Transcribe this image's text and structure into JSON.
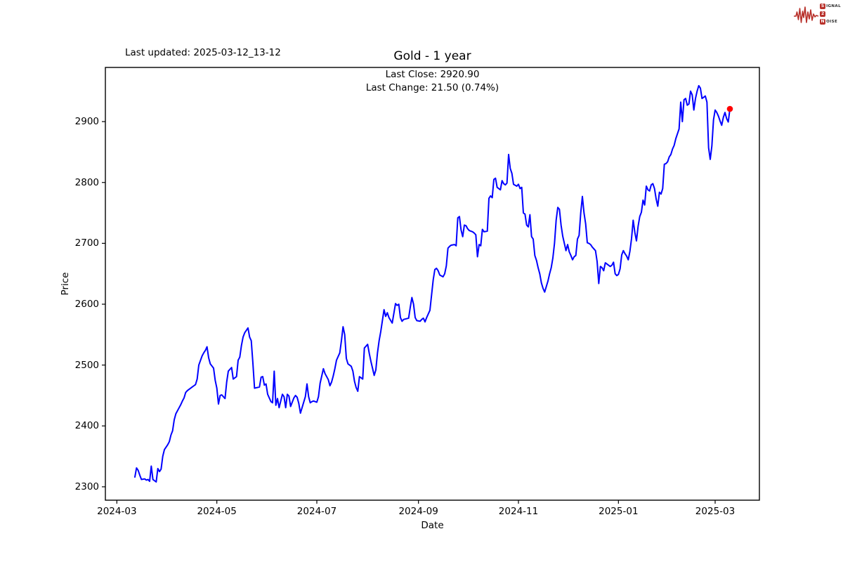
{
  "header": {
    "last_updated": "Last updated: 2025-03-12_13-12"
  },
  "logo": {
    "rows": [
      {
        "badge": "S",
        "rest": "IGNAL"
      },
      {
        "badge": "2",
        "rest": ""
      },
      {
        "badge": "N",
        "rest": "OISE"
      }
    ]
  },
  "chart_data": {
    "type": "line",
    "title": "Gold - 1 year",
    "annotation_lines": [
      "Last Close: 2920.90",
      "Last Change: 21.50 (0.74%)"
    ],
    "xlabel": "Date",
    "ylabel": "Price",
    "grid": false,
    "legend": "none",
    "x_ticks": [
      "2024-03",
      "2024-05",
      "2024-07",
      "2024-09",
      "2024-11",
      "2025-01",
      "2025-03"
    ],
    "x_tick_dates": [
      "2024-03-01",
      "2024-05-01",
      "2024-07-01",
      "2024-09-01",
      "2024-11-01",
      "2025-01-01",
      "2025-03-01"
    ],
    "y_ticks": [
      2300,
      2400,
      2500,
      2600,
      2700,
      2800,
      2900
    ],
    "xlim": [
      "2024-02-23",
      "2025-03-28"
    ],
    "ylim": [
      2278,
      2989
    ],
    "colors": {
      "line": "#0000ff",
      "marker": "#ff0000",
      "frame": "#000000",
      "text": "#000000",
      "logo_red": "#b8312b"
    },
    "last_close": 2920.9,
    "last_change": 21.5,
    "last_change_pct": 0.74,
    "series": [
      [
        "2024-03-12",
        2316
      ],
      [
        "2024-03-13",
        2331
      ],
      [
        "2024-03-14",
        2327
      ],
      [
        "2024-03-15",
        2319
      ],
      [
        "2024-03-16",
        2312
      ],
      [
        "2024-03-18",
        2313
      ],
      [
        "2024-03-19",
        2311
      ],
      [
        "2024-03-20",
        2312
      ],
      [
        "2024-03-21",
        2309
      ],
      [
        "2024-03-22",
        2334
      ],
      [
        "2024-03-23",
        2312
      ],
      [
        "2024-03-25",
        2308
      ],
      [
        "2024-03-26",
        2330
      ],
      [
        "2024-03-27",
        2325
      ],
      [
        "2024-03-28",
        2329
      ],
      [
        "2024-03-29",
        2350
      ],
      [
        "2024-03-30",
        2361
      ],
      [
        "2024-04-01",
        2369
      ],
      [
        "2024-04-02",
        2374
      ],
      [
        "2024-04-03",
        2385
      ],
      [
        "2024-04-04",
        2392
      ],
      [
        "2024-04-05",
        2410
      ],
      [
        "2024-04-06",
        2420
      ],
      [
        "2024-04-08",
        2430
      ],
      [
        "2024-04-09",
        2435
      ],
      [
        "2024-04-10",
        2441
      ],
      [
        "2024-04-11",
        2446
      ],
      [
        "2024-04-12",
        2455
      ],
      [
        "2024-04-13",
        2458
      ],
      [
        "2024-04-15",
        2462
      ],
      [
        "2024-04-16",
        2464
      ],
      [
        "2024-04-17",
        2466
      ],
      [
        "2024-04-18",
        2468
      ],
      [
        "2024-04-19",
        2477
      ],
      [
        "2024-04-20",
        2500
      ],
      [
        "2024-04-22",
        2515
      ],
      [
        "2024-04-23",
        2520
      ],
      [
        "2024-04-24",
        2524
      ],
      [
        "2024-04-25",
        2530
      ],
      [
        "2024-04-26",
        2512
      ],
      [
        "2024-04-27",
        2502
      ],
      [
        "2024-04-29",
        2495
      ],
      [
        "2024-04-30",
        2475
      ],
      [
        "2024-05-01",
        2462
      ],
      [
        "2024-05-02",
        2436
      ],
      [
        "2024-05-03",
        2450
      ],
      [
        "2024-05-04",
        2451
      ],
      [
        "2024-05-06",
        2445
      ],
      [
        "2024-05-07",
        2472
      ],
      [
        "2024-05-08",
        2490
      ],
      [
        "2024-05-10",
        2496
      ],
      [
        "2024-05-11",
        2477
      ],
      [
        "2024-05-13",
        2481
      ],
      [
        "2024-05-14",
        2508
      ],
      [
        "2024-05-15",
        2513
      ],
      [
        "2024-05-16",
        2532
      ],
      [
        "2024-05-17",
        2546
      ],
      [
        "2024-05-18",
        2553
      ],
      [
        "2024-05-20",
        2561
      ],
      [
        "2024-05-21",
        2546
      ],
      [
        "2024-05-22",
        2540
      ],
      [
        "2024-05-23",
        2503
      ],
      [
        "2024-05-24",
        2462
      ],
      [
        "2024-05-27",
        2464
      ],
      [
        "2024-05-28",
        2480
      ],
      [
        "2024-05-29",
        2481
      ],
      [
        "2024-05-30",
        2467
      ],
      [
        "2024-05-31",
        2469
      ],
      [
        "2024-06-01",
        2452
      ],
      [
        "2024-06-03",
        2440
      ],
      [
        "2024-06-04",
        2438
      ],
      [
        "2024-06-05",
        2490
      ],
      [
        "2024-06-06",
        2434
      ],
      [
        "2024-06-07",
        2445
      ],
      [
        "2024-06-08",
        2430
      ],
      [
        "2024-06-10",
        2452
      ],
      [
        "2024-06-11",
        2448
      ],
      [
        "2024-06-12",
        2430
      ],
      [
        "2024-06-13",
        2452
      ],
      [
        "2024-06-14",
        2449
      ],
      [
        "2024-06-15",
        2432
      ],
      [
        "2024-06-17",
        2446
      ],
      [
        "2024-06-18",
        2450
      ],
      [
        "2024-06-19",
        2447
      ],
      [
        "2024-06-20",
        2437
      ],
      [
        "2024-06-21",
        2421
      ],
      [
        "2024-06-22",
        2430
      ],
      [
        "2024-06-24",
        2448
      ],
      [
        "2024-06-25",
        2469
      ],
      [
        "2024-06-26",
        2448
      ],
      [
        "2024-06-27",
        2438
      ],
      [
        "2024-06-28",
        2440
      ],
      [
        "2024-06-29",
        2441
      ],
      [
        "2024-07-01",
        2439
      ],
      [
        "2024-07-02",
        2448
      ],
      [
        "2024-07-03",
        2470
      ],
      [
        "2024-07-05",
        2494
      ],
      [
        "2024-07-06",
        2486
      ],
      [
        "2024-07-08",
        2476
      ],
      [
        "2024-07-09",
        2466
      ],
      [
        "2024-07-10",
        2472
      ],
      [
        "2024-07-11",
        2482
      ],
      [
        "2024-07-12",
        2494
      ],
      [
        "2024-07-13",
        2508
      ],
      [
        "2024-07-15",
        2520
      ],
      [
        "2024-07-16",
        2540
      ],
      [
        "2024-07-17",
        2563
      ],
      [
        "2024-07-18",
        2550
      ],
      [
        "2024-07-19",
        2511
      ],
      [
        "2024-07-20",
        2502
      ],
      [
        "2024-07-22",
        2498
      ],
      [
        "2024-07-23",
        2490
      ],
      [
        "2024-07-24",
        2473
      ],
      [
        "2024-07-25",
        2463
      ],
      [
        "2024-07-26",
        2457
      ],
      [
        "2024-07-27",
        2481
      ],
      [
        "2024-07-29",
        2477
      ],
      [
        "2024-07-30",
        2528
      ],
      [
        "2024-07-31",
        2531
      ],
      [
        "2024-08-01",
        2534
      ],
      [
        "2024-08-02",
        2519
      ],
      [
        "2024-08-03",
        2506
      ],
      [
        "2024-08-05",
        2483
      ],
      [
        "2024-08-06",
        2492
      ],
      [
        "2024-08-07",
        2520
      ],
      [
        "2024-08-08",
        2540
      ],
      [
        "2024-08-09",
        2555
      ],
      [
        "2024-08-11",
        2591
      ],
      [
        "2024-08-12",
        2580
      ],
      [
        "2024-08-13",
        2586
      ],
      [
        "2024-08-14",
        2578
      ],
      [
        "2024-08-16",
        2569
      ],
      [
        "2024-08-18",
        2601
      ],
      [
        "2024-08-19",
        2598
      ],
      [
        "2024-08-20",
        2600
      ],
      [
        "2024-08-21",
        2578
      ],
      [
        "2024-08-22",
        2572
      ],
      [
        "2024-08-23",
        2575
      ],
      [
        "2024-08-26",
        2577
      ],
      [
        "2024-08-27",
        2595
      ],
      [
        "2024-08-28",
        2611
      ],
      [
        "2024-08-29",
        2600
      ],
      [
        "2024-08-30",
        2578
      ],
      [
        "2024-08-31",
        2573
      ],
      [
        "2024-09-02",
        2572
      ],
      [
        "2024-09-03",
        2575
      ],
      [
        "2024-09-04",
        2577
      ],
      [
        "2024-09-05",
        2571
      ],
      [
        "2024-09-06",
        2578
      ],
      [
        "2024-09-08",
        2590
      ],
      [
        "2024-09-09",
        2615
      ],
      [
        "2024-09-10",
        2640
      ],
      [
        "2024-09-11",
        2657
      ],
      [
        "2024-09-12",
        2659
      ],
      [
        "2024-09-13",
        2655
      ],
      [
        "2024-09-14",
        2648
      ],
      [
        "2024-09-16",
        2645
      ],
      [
        "2024-09-17",
        2650
      ],
      [
        "2024-09-18",
        2663
      ],
      [
        "2024-09-19",
        2692
      ],
      [
        "2024-09-20",
        2695
      ],
      [
        "2024-09-21",
        2697
      ],
      [
        "2024-09-23",
        2698
      ],
      [
        "2024-09-24",
        2696
      ],
      [
        "2024-09-25",
        2742
      ],
      [
        "2024-09-26",
        2744
      ],
      [
        "2024-09-27",
        2722
      ],
      [
        "2024-09-28",
        2711
      ],
      [
        "2024-09-29",
        2730
      ],
      [
        "2024-09-30",
        2729
      ],
      [
        "2024-10-01",
        2724
      ],
      [
        "2024-10-02",
        2721
      ],
      [
        "2024-10-04",
        2719
      ],
      [
        "2024-10-05",
        2717
      ],
      [
        "2024-10-06",
        2714
      ],
      [
        "2024-10-07",
        2678
      ],
      [
        "2024-10-08",
        2698
      ],
      [
        "2024-10-09",
        2696
      ],
      [
        "2024-10-10",
        2723
      ],
      [
        "2024-10-11",
        2719
      ],
      [
        "2024-10-13",
        2720
      ],
      [
        "2024-10-14",
        2774
      ],
      [
        "2024-10-15",
        2778
      ],
      [
        "2024-10-16",
        2775
      ],
      [
        "2024-10-17",
        2805
      ],
      [
        "2024-10-18",
        2807
      ],
      [
        "2024-10-19",
        2792
      ],
      [
        "2024-10-21",
        2788
      ],
      [
        "2024-10-22",
        2803
      ],
      [
        "2024-10-23",
        2798
      ],
      [
        "2024-10-24",
        2796
      ],
      [
        "2024-10-25",
        2799
      ],
      [
        "2024-10-26",
        2846
      ],
      [
        "2024-10-27",
        2823
      ],
      [
        "2024-10-28",
        2815
      ],
      [
        "2024-10-29",
        2797
      ],
      [
        "2024-10-31",
        2794
      ],
      [
        "2024-11-01",
        2797
      ],
      [
        "2024-11-02",
        2790
      ],
      [
        "2024-11-03",
        2792
      ],
      [
        "2024-11-04",
        2750
      ],
      [
        "2024-11-05",
        2748
      ],
      [
        "2024-11-06",
        2730
      ],
      [
        "2024-11-07",
        2727
      ],
      [
        "2024-11-08",
        2747
      ],
      [
        "2024-11-09",
        2711
      ],
      [
        "2024-11-10",
        2707
      ],
      [
        "2024-11-11",
        2680
      ],
      [
        "2024-11-12",
        2672
      ],
      [
        "2024-11-13",
        2660
      ],
      [
        "2024-11-14",
        2650
      ],
      [
        "2024-11-15",
        2635
      ],
      [
        "2024-11-16",
        2626
      ],
      [
        "2024-11-17",
        2620
      ],
      [
        "2024-11-18",
        2629
      ],
      [
        "2024-11-19",
        2638
      ],
      [
        "2024-11-20",
        2650
      ],
      [
        "2024-11-21",
        2660
      ],
      [
        "2024-11-22",
        2676
      ],
      [
        "2024-11-23",
        2700
      ],
      [
        "2024-11-24",
        2738
      ],
      [
        "2024-11-25",
        2759
      ],
      [
        "2024-11-26",
        2756
      ],
      [
        "2024-11-27",
        2730
      ],
      [
        "2024-11-28",
        2712
      ],
      [
        "2024-11-29",
        2700
      ],
      [
        "2024-11-30",
        2688
      ],
      [
        "2024-12-01",
        2698
      ],
      [
        "2024-12-02",
        2686
      ],
      [
        "2024-12-03",
        2680
      ],
      [
        "2024-12-04",
        2673
      ],
      [
        "2024-12-05",
        2678
      ],
      [
        "2024-12-06",
        2680
      ],
      [
        "2024-12-07",
        2707
      ],
      [
        "2024-12-08",
        2713
      ],
      [
        "2024-12-09",
        2750
      ],
      [
        "2024-12-10",
        2777
      ],
      [
        "2024-12-11",
        2750
      ],
      [
        "2024-12-12",
        2732
      ],
      [
        "2024-12-13",
        2701
      ],
      [
        "2024-12-14",
        2700
      ],
      [
        "2024-12-15",
        2698
      ],
      [
        "2024-12-16",
        2694
      ],
      [
        "2024-12-18",
        2688
      ],
      [
        "2024-12-19",
        2670
      ],
      [
        "2024-12-20",
        2634
      ],
      [
        "2024-12-21",
        2662
      ],
      [
        "2024-12-22",
        2660
      ],
      [
        "2024-12-23",
        2655
      ],
      [
        "2024-12-24",
        2668
      ],
      [
        "2024-12-25",
        2666
      ],
      [
        "2024-12-27",
        2662
      ],
      [
        "2024-12-28",
        2664
      ],
      [
        "2024-12-29",
        2669
      ],
      [
        "2024-12-30",
        2650
      ],
      [
        "2024-12-31",
        2647
      ],
      [
        "2025-01-01",
        2649
      ],
      [
        "2025-01-02",
        2658
      ],
      [
        "2025-01-03",
        2681
      ],
      [
        "2025-01-04",
        2688
      ],
      [
        "2025-01-05",
        2683
      ],
      [
        "2025-01-06",
        2679
      ],
      [
        "2025-01-07",
        2673
      ],
      [
        "2025-01-08",
        2687
      ],
      [
        "2025-01-09",
        2708
      ],
      [
        "2025-01-10",
        2738
      ],
      [
        "2025-01-11",
        2718
      ],
      [
        "2025-01-12",
        2704
      ],
      [
        "2025-01-13",
        2728
      ],
      [
        "2025-01-14",
        2744
      ],
      [
        "2025-01-15",
        2751
      ],
      [
        "2025-01-16",
        2771
      ],
      [
        "2025-01-17",
        2763
      ],
      [
        "2025-01-18",
        2794
      ],
      [
        "2025-01-19",
        2788
      ],
      [
        "2025-01-20",
        2786
      ],
      [
        "2025-01-21",
        2796
      ],
      [
        "2025-01-22",
        2798
      ],
      [
        "2025-01-23",
        2790
      ],
      [
        "2025-01-24",
        2773
      ],
      [
        "2025-01-25",
        2761
      ],
      [
        "2025-01-26",
        2784
      ],
      [
        "2025-01-27",
        2781
      ],
      [
        "2025-01-28",
        2790
      ],
      [
        "2025-01-29",
        2830
      ],
      [
        "2025-01-30",
        2831
      ],
      [
        "2025-01-31",
        2834
      ],
      [
        "2025-02-01",
        2842
      ],
      [
        "2025-02-02",
        2846
      ],
      [
        "2025-02-03",
        2855
      ],
      [
        "2025-02-04",
        2861
      ],
      [
        "2025-02-05",
        2872
      ],
      [
        "2025-02-06",
        2880
      ],
      [
        "2025-02-07",
        2888
      ],
      [
        "2025-02-08",
        2932
      ],
      [
        "2025-02-09",
        2900
      ],
      [
        "2025-02-10",
        2936
      ],
      [
        "2025-02-11",
        2938
      ],
      [
        "2025-02-12",
        2927
      ],
      [
        "2025-02-13",
        2929
      ],
      [
        "2025-02-14",
        2950
      ],
      [
        "2025-02-15",
        2944
      ],
      [
        "2025-02-16",
        2919
      ],
      [
        "2025-02-17",
        2938
      ],
      [
        "2025-02-18",
        2950
      ],
      [
        "2025-02-19",
        2959
      ],
      [
        "2025-02-20",
        2955
      ],
      [
        "2025-02-21",
        2938
      ],
      [
        "2025-02-22",
        2940
      ],
      [
        "2025-02-23",
        2942
      ],
      [
        "2025-02-24",
        2932
      ],
      [
        "2025-02-25",
        2857
      ],
      [
        "2025-02-26",
        2838
      ],
      [
        "2025-02-27",
        2860
      ],
      [
        "2025-02-28",
        2903
      ],
      [
        "2025-03-01",
        2919
      ],
      [
        "2025-03-02",
        2915
      ],
      [
        "2025-03-03",
        2909
      ],
      [
        "2025-03-04",
        2901
      ],
      [
        "2025-03-05",
        2894
      ],
      [
        "2025-03-06",
        2907
      ],
      [
        "2025-03-07",
        2915
      ],
      [
        "2025-03-08",
        2905
      ],
      [
        "2025-03-09",
        2899.4
      ],
      [
        "2025-03-10",
        2920.9
      ]
    ]
  }
}
